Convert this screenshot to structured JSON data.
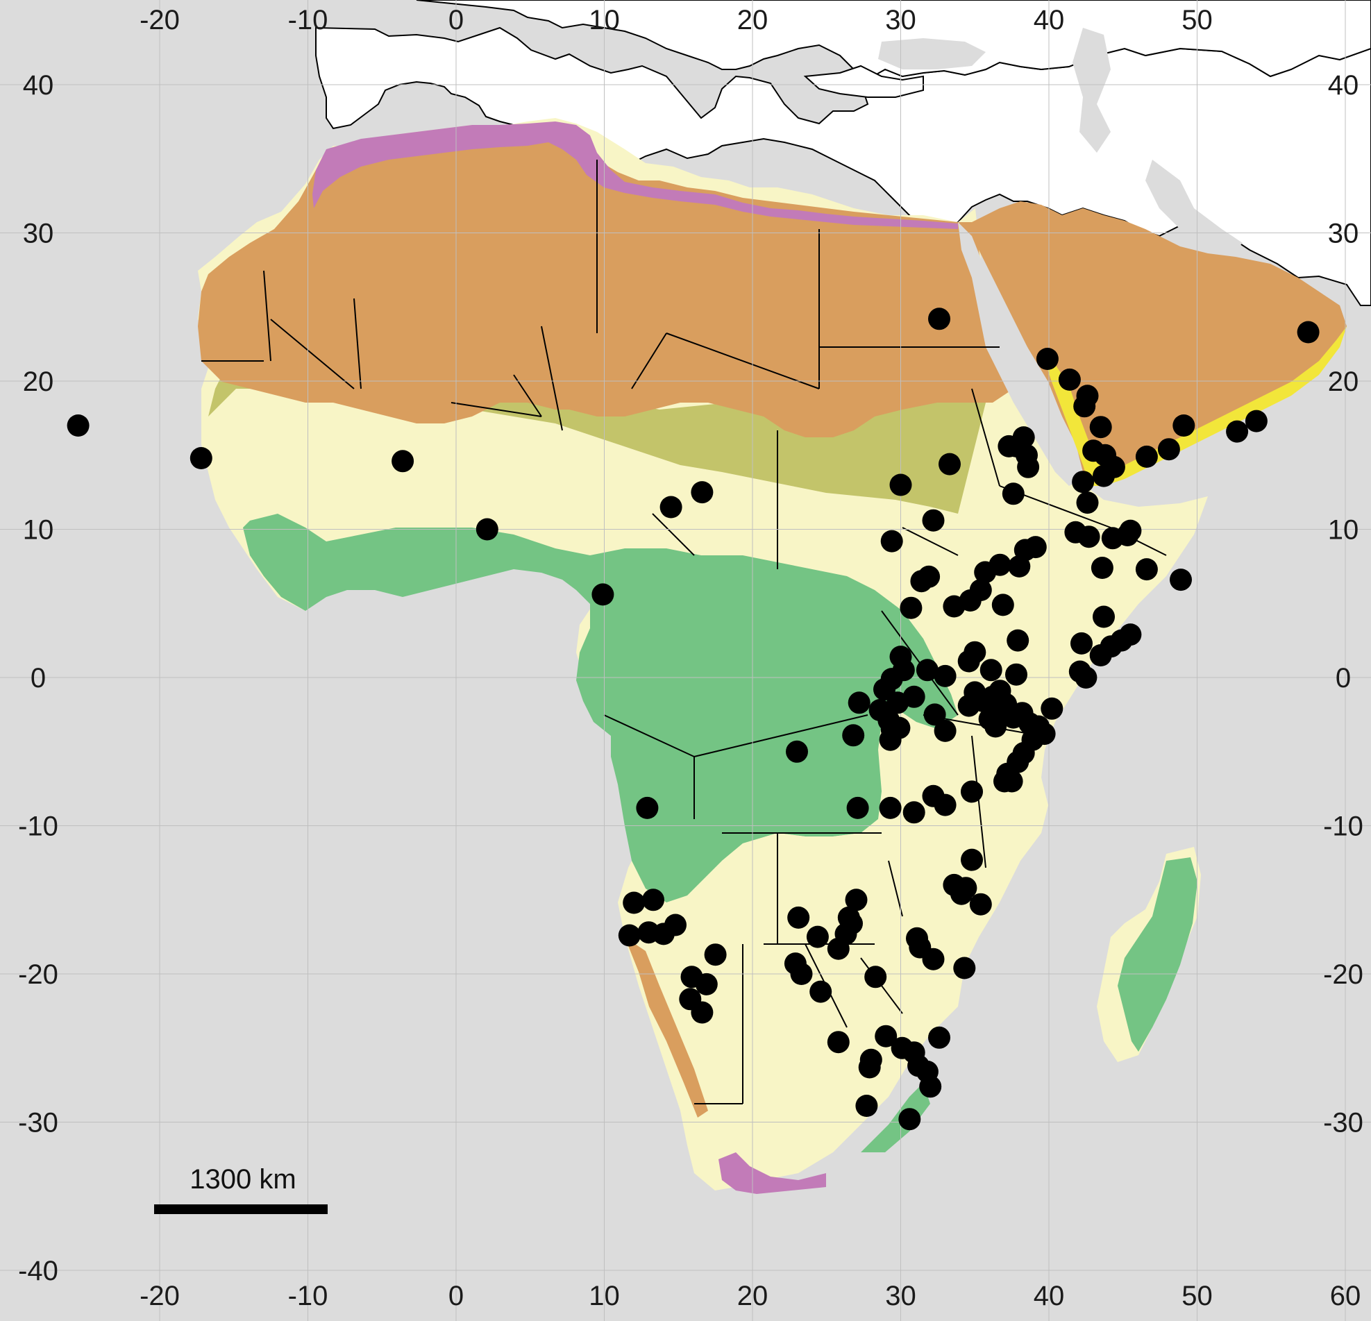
{
  "map": {
    "colors": {
      "ocean": "#dcdcdc",
      "land_outside": "#ffffff",
      "mediterranean_zone": "#c27bb8",
      "desert_zone": "#d99e5e",
      "sahel_zone": "#c3c46a",
      "savanna_zone": "#f8f5c6",
      "forest_zone": "#74c484",
      "arid_coastal_zone": "#f2e63a",
      "occurrence_point": "#000000",
      "border": "#000000",
      "grid": "#bfbfbf"
    },
    "x_ticks_top": [
      "-20",
      "-10",
      "0",
      "10",
      "20",
      "30",
      "40",
      "50"
    ],
    "x_ticks_bottom": [
      "-20",
      "-10",
      "0",
      "10",
      "20",
      "30",
      "40",
      "50",
      "60"
    ],
    "y_ticks_left": [
      "40",
      "30",
      "20",
      "10",
      "0",
      "-10",
      "-20",
      "-30",
      "-40"
    ],
    "y_ticks_right": [
      "40",
      "30",
      "20",
      "10",
      "0",
      "-10",
      "-20",
      "-30"
    ],
    "scale_bar_label": "1300 km",
    "extent": {
      "lon": [
        -30,
        60
      ],
      "lat": [
        -42,
        45
      ]
    },
    "occurrence_points": [
      [
        -25.5,
        17.0
      ],
      [
        -17.2,
        14.8
      ],
      [
        -3.6,
        14.6
      ],
      [
        2.1,
        10.0
      ],
      [
        9.9,
        5.6
      ],
      [
        14.5,
        11.5
      ],
      [
        16.6,
        12.5
      ],
      [
        32.6,
        24.2
      ],
      [
        57.5,
        23.3
      ],
      [
        39.9,
        21.5
      ],
      [
        41.4,
        20.1
      ],
      [
        42.6,
        19.0
      ],
      [
        42.4,
        18.3
      ],
      [
        43.5,
        16.9
      ],
      [
        43.0,
        15.3
      ],
      [
        43.8,
        15.0
      ],
      [
        44.4,
        14.2
      ],
      [
        43.7,
        13.6
      ],
      [
        46.6,
        14.9
      ],
      [
        48.1,
        15.4
      ],
      [
        49.1,
        17.0
      ],
      [
        52.7,
        16.6
      ],
      [
        54.0,
        17.3
      ],
      [
        38.3,
        16.2
      ],
      [
        37.8,
        15.6
      ],
      [
        38.5,
        15.0
      ],
      [
        37.3,
        15.6
      ],
      [
        38.6,
        14.2
      ],
      [
        37.6,
        12.4
      ],
      [
        42.3,
        13.2
      ],
      [
        42.6,
        11.8
      ],
      [
        33.3,
        14.4
      ],
      [
        30.0,
        13.0
      ],
      [
        32.2,
        10.6
      ],
      [
        29.4,
        9.2
      ],
      [
        41.8,
        9.8
      ],
      [
        42.7,
        9.5
      ],
      [
        44.3,
        9.4
      ],
      [
        45.3,
        9.6
      ],
      [
        45.5,
        9.9
      ],
      [
        39.1,
        8.8
      ],
      [
        38.4,
        8.6
      ],
      [
        38.0,
        7.5
      ],
      [
        36.7,
        7.6
      ],
      [
        35.7,
        7.1
      ],
      [
        43.6,
        7.4
      ],
      [
        46.6,
        7.3
      ],
      [
        48.9,
        6.6
      ],
      [
        31.9,
        6.8
      ],
      [
        31.4,
        6.5
      ],
      [
        30.7,
        4.7
      ],
      [
        33.6,
        4.8
      ],
      [
        34.7,
        5.2
      ],
      [
        35.4,
        5.9
      ],
      [
        36.9,
        4.9
      ],
      [
        43.7,
        4.1
      ],
      [
        45.5,
        2.9
      ],
      [
        44.9,
        2.5
      ],
      [
        44.2,
        2.1
      ],
      [
        43.5,
        1.5
      ],
      [
        42.2,
        2.3
      ],
      [
        37.9,
        2.5
      ],
      [
        35.0,
        1.7
      ],
      [
        34.6,
        1.1
      ],
      [
        30.0,
        1.4
      ],
      [
        30.2,
        0.5
      ],
      [
        31.8,
        0.5
      ],
      [
        33.0,
        0.1
      ],
      [
        36.1,
        0.5
      ],
      [
        37.8,
        0.2
      ],
      [
        42.1,
        0.4
      ],
      [
        42.5,
        0.0
      ],
      [
        29.4,
        -0.1
      ],
      [
        28.9,
        -0.8
      ],
      [
        29.8,
        -1.7
      ],
      [
        30.9,
        -1.3
      ],
      [
        27.2,
        -1.7
      ],
      [
        28.6,
        -2.2
      ],
      [
        29.2,
        -2.9
      ],
      [
        29.4,
        -3.5
      ],
      [
        29.9,
        -3.4
      ],
      [
        29.3,
        -4.2
      ],
      [
        32.3,
        -2.5
      ],
      [
        33.0,
        -3.6
      ],
      [
        34.6,
        -1.9
      ],
      [
        35.0,
        -1.0
      ],
      [
        35.6,
        -1.6
      ],
      [
        36.2,
        -1.3
      ],
      [
        36.7,
        -0.9
      ],
      [
        37.1,
        -1.8
      ],
      [
        36.0,
        -2.8
      ],
      [
        36.4,
        -3.3
      ],
      [
        36.8,
        -2.4
      ],
      [
        37.6,
        -2.7
      ],
      [
        38.2,
        -2.4
      ],
      [
        38.7,
        -3.1
      ],
      [
        39.3,
        -3.3
      ],
      [
        39.7,
        -3.8
      ],
      [
        40.2,
        -2.1
      ],
      [
        38.9,
        -4.2
      ],
      [
        38.3,
        -5.1
      ],
      [
        37.9,
        -5.7
      ],
      [
        37.2,
        -6.5
      ],
      [
        37.0,
        -7.0
      ],
      [
        37.5,
        -7.0
      ],
      [
        34.8,
        -7.7
      ],
      [
        33.0,
        -8.6
      ],
      [
        32.2,
        -8.0
      ],
      [
        30.9,
        -9.1
      ],
      [
        29.3,
        -8.8
      ],
      [
        27.1,
        -8.8
      ],
      [
        26.8,
        -3.9
      ],
      [
        23.0,
        -5.0
      ],
      [
        34.8,
        -12.3
      ],
      [
        33.6,
        -14.0
      ],
      [
        34.4,
        -14.2
      ],
      [
        34.1,
        -14.6
      ],
      [
        35.4,
        -15.3
      ],
      [
        12.0,
        -15.2
      ],
      [
        13.3,
        -15.0
      ],
      [
        11.7,
        -17.4
      ],
      [
        13.0,
        -17.2
      ],
      [
        14.0,
        -17.3
      ],
      [
        14.8,
        -16.7
      ],
      [
        17.5,
        -18.7
      ],
      [
        15.9,
        -20.2
      ],
      [
        16.9,
        -20.7
      ],
      [
        15.8,
        -21.7
      ],
      [
        16.6,
        -22.6
      ],
      [
        12.9,
        -8.8
      ],
      [
        23.1,
        -16.2
      ],
      [
        24.4,
        -17.5
      ],
      [
        25.8,
        -18.3
      ],
      [
        26.3,
        -17.3
      ],
      [
        26.5,
        -16.2
      ],
      [
        27.0,
        -15.0
      ],
      [
        26.7,
        -16.6
      ],
      [
        22.9,
        -19.3
      ],
      [
        23.3,
        -20.0
      ],
      [
        24.6,
        -21.2
      ],
      [
        28.3,
        -20.2
      ],
      [
        31.1,
        -17.6
      ],
      [
        31.3,
        -18.2
      ],
      [
        32.2,
        -19.0
      ],
      [
        34.3,
        -19.6
      ],
      [
        25.8,
        -24.6
      ],
      [
        29.0,
        -24.2
      ],
      [
        28.0,
        -25.8
      ],
      [
        27.9,
        -26.3
      ],
      [
        30.1,
        -25.0
      ],
      [
        30.9,
        -25.3
      ],
      [
        31.2,
        -26.2
      ],
      [
        31.8,
        -26.6
      ],
      [
        32.0,
        -27.6
      ],
      [
        32.6,
        -24.3
      ],
      [
        27.7,
        -28.9
      ],
      [
        30.6,
        -29.8
      ]
    ]
  }
}
